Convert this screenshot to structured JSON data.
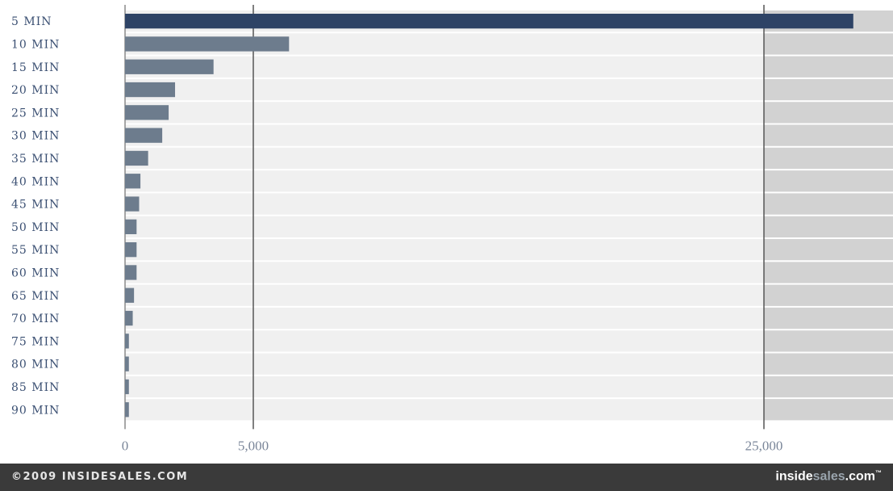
{
  "chart_data": {
    "type": "bar",
    "orientation": "horizontal",
    "categories": [
      "5 MIN",
      "10 MIN",
      "15 MIN",
      "20 MIN",
      "25 MIN",
      "30 MIN",
      "35 MIN",
      "40 MIN",
      "45 MIN",
      "50 MIN",
      "55 MIN",
      "60 MIN",
      "65 MIN",
      "70 MIN",
      "75 MIN",
      "80 MIN",
      "85 MIN",
      "90 MIN"
    ],
    "values": [
      28500,
      6400,
      3450,
      1950,
      1700,
      1450,
      900,
      600,
      550,
      450,
      450,
      450,
      350,
      300,
      150,
      150,
      150,
      150
    ],
    "xlim": [
      0,
      30000
    ],
    "xticks": [
      {
        "value": 0,
        "label": "0"
      },
      {
        "value": 5000,
        "label": "5,000"
      },
      {
        "value": 25000,
        "label": "25,000"
      }
    ],
    "axis_break_at": 25000,
    "grid": true,
    "colors": {
      "first_bar": "#2e4366",
      "bars": "#6d7c8d",
      "row_band_light": "#f0f0f0",
      "row_band_dark": "#d2d2d2",
      "gridline": "#555555",
      "label": "#3a4f72"
    }
  },
  "footer": {
    "copyright": "©2009 INSIDESALES.COM",
    "logo_part1": "inside",
    "logo_part2": "sales",
    "logo_part3": ".com",
    "logo_tm": "™"
  }
}
